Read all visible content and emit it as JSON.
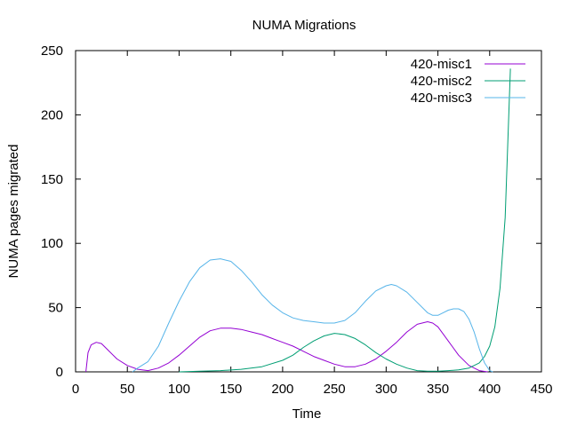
{
  "chart_data": {
    "type": "line",
    "title": "NUMA Migrations",
    "xlabel": "Time",
    "ylabel": "NUMA pages migrated",
    "xlim": [
      0,
      450
    ],
    "ylim": [
      0,
      250
    ],
    "xticks": [
      0,
      50,
      100,
      150,
      200,
      250,
      300,
      350,
      400,
      450
    ],
    "yticks": [
      0,
      50,
      100,
      150,
      200,
      250
    ],
    "grid": false,
    "legend_position": "top-right",
    "series": [
      {
        "name": "420-misc1",
        "color": "#9400d3",
        "points": [
          [
            10,
            0
          ],
          [
            12,
            15
          ],
          [
            15,
            21
          ],
          [
            20,
            23
          ],
          [
            25,
            22
          ],
          [
            30,
            18
          ],
          [
            40,
            10
          ],
          [
            50,
            5
          ],
          [
            60,
            2
          ],
          [
            70,
            1
          ],
          [
            80,
            3
          ],
          [
            90,
            7
          ],
          [
            100,
            13
          ],
          [
            110,
            20
          ],
          [
            120,
            27
          ],
          [
            130,
            32
          ],
          [
            140,
            34
          ],
          [
            150,
            34
          ],
          [
            160,
            33
          ],
          [
            170,
            31
          ],
          [
            180,
            29
          ],
          [
            190,
            26
          ],
          [
            200,
            23
          ],
          [
            210,
            20
          ],
          [
            220,
            16
          ],
          [
            230,
            12
          ],
          [
            240,
            9
          ],
          [
            250,
            6
          ],
          [
            260,
            4
          ],
          [
            270,
            4
          ],
          [
            280,
            6
          ],
          [
            290,
            10
          ],
          [
            300,
            16
          ],
          [
            310,
            23
          ],
          [
            320,
            31
          ],
          [
            330,
            37
          ],
          [
            340,
            39
          ],
          [
            345,
            38
          ],
          [
            350,
            35
          ],
          [
            360,
            24
          ],
          [
            370,
            13
          ],
          [
            380,
            5
          ],
          [
            390,
            1
          ],
          [
            398,
            0
          ]
        ]
      },
      {
        "name": "420-misc2",
        "color": "#009e73",
        "points": [
          [
            100,
            0
          ],
          [
            120,
            0.5
          ],
          [
            140,
            1
          ],
          [
            160,
            2
          ],
          [
            180,
            4
          ],
          [
            200,
            9
          ],
          [
            210,
            13
          ],
          [
            220,
            19
          ],
          [
            230,
            24
          ],
          [
            240,
            28
          ],
          [
            250,
            30
          ],
          [
            260,
            29
          ],
          [
            270,
            26
          ],
          [
            280,
            21
          ],
          [
            290,
            15
          ],
          [
            300,
            10
          ],
          [
            310,
            6
          ],
          [
            320,
            3
          ],
          [
            330,
            1
          ],
          [
            340,
            0.5
          ],
          [
            350,
            0.5
          ],
          [
            360,
            1
          ],
          [
            370,
            1.5
          ],
          [
            380,
            3
          ],
          [
            390,
            7
          ],
          [
            395,
            12
          ],
          [
            400,
            20
          ],
          [
            405,
            35
          ],
          [
            410,
            65
          ],
          [
            415,
            120
          ],
          [
            420,
            236
          ]
        ]
      },
      {
        "name": "420-misc3",
        "color": "#56b4e9",
        "points": [
          [
            55,
            0
          ],
          [
            60,
            3
          ],
          [
            70,
            8
          ],
          [
            80,
            20
          ],
          [
            90,
            38
          ],
          [
            100,
            55
          ],
          [
            110,
            70
          ],
          [
            120,
            81
          ],
          [
            130,
            87
          ],
          [
            140,
            88
          ],
          [
            150,
            86
          ],
          [
            160,
            79
          ],
          [
            170,
            70
          ],
          [
            180,
            60
          ],
          [
            190,
            52
          ],
          [
            200,
            46
          ],
          [
            210,
            42
          ],
          [
            220,
            40
          ],
          [
            230,
            39
          ],
          [
            240,
            38
          ],
          [
            250,
            38
          ],
          [
            260,
            40
          ],
          [
            270,
            46
          ],
          [
            280,
            55
          ],
          [
            290,
            63
          ],
          [
            300,
            67
          ],
          [
            305,
            68
          ],
          [
            310,
            67
          ],
          [
            320,
            62
          ],
          [
            330,
            54
          ],
          [
            340,
            46
          ],
          [
            345,
            44
          ],
          [
            350,
            44
          ],
          [
            355,
            46
          ],
          [
            360,
            48
          ],
          [
            365,
            49
          ],
          [
            370,
            49
          ],
          [
            375,
            47
          ],
          [
            380,
            41
          ],
          [
            385,
            31
          ],
          [
            390,
            18
          ],
          [
            395,
            7
          ],
          [
            400,
            1
          ],
          [
            403,
            0
          ]
        ]
      }
    ]
  }
}
